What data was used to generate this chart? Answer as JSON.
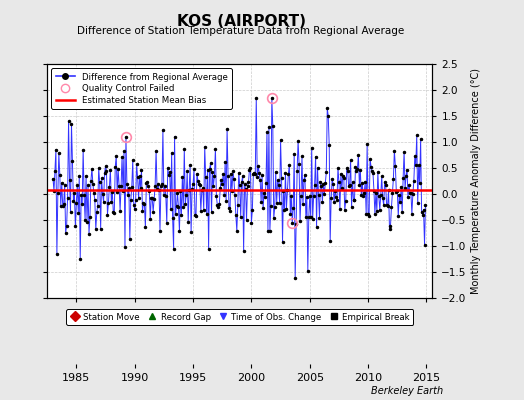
{
  "title": "KOS (AIRPORT)",
  "subtitle": "Difference of Station Temperature Data from Regional Average",
  "ylabel": "Monthly Temperature Anomaly Difference (°C)",
  "xlim": [
    1982.5,
    2015.5
  ],
  "ylim": [
    -2.0,
    2.5
  ],
  "yticks": [
    -2.0,
    -1.5,
    -1.0,
    -0.5,
    0.0,
    0.5,
    1.0,
    1.5,
    2.0,
    2.5
  ],
  "xticks": [
    1985,
    1990,
    1995,
    2000,
    2005,
    2010,
    2015
  ],
  "mean_bias": 0.07,
  "line_color": "#3333FF",
  "bias_color": "#FF0000",
  "dot_color": "#000000",
  "bg_color": "#E8E8E8",
  "plot_bg": "#FFFFFF",
  "grid_color": "#CCCCCC",
  "watermark": "Berkeley Earth",
  "qc_times": [
    1989.25,
    2001.75,
    2003.5
  ],
  "qc_vals": [
    1.1,
    1.85,
    -0.55
  ]
}
